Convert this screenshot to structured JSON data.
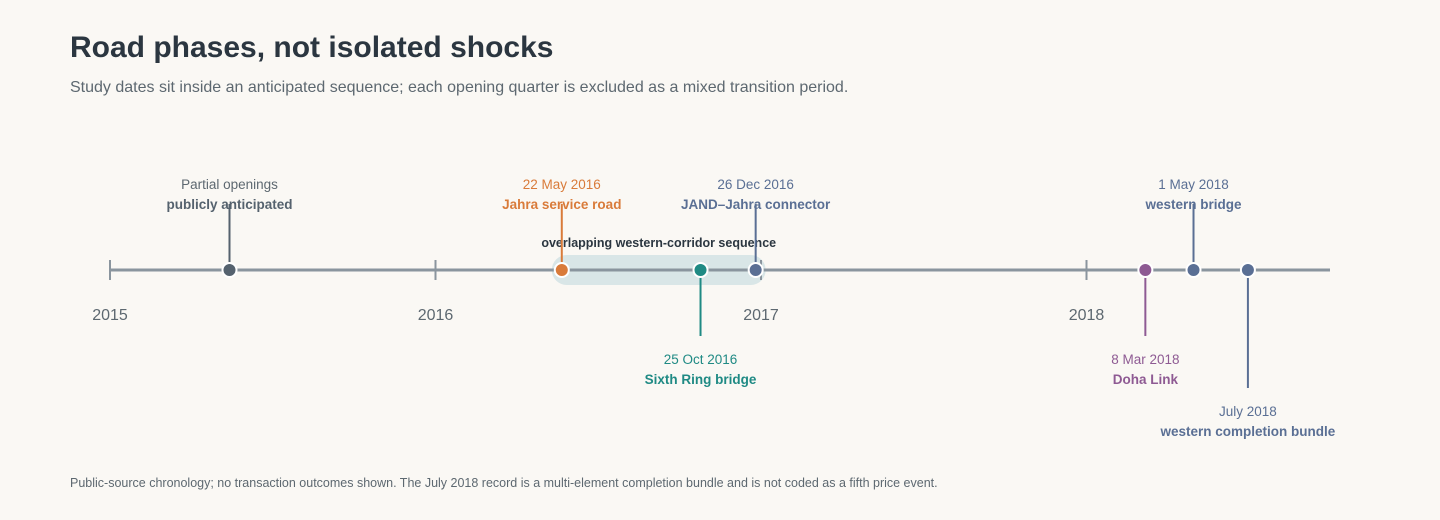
{
  "header": {
    "title": "Road phases, not isolated shocks",
    "subtitle": "Study dates sit inside an anticipated sequence; each opening quarter is excluded as a mixed transition period."
  },
  "footnote": "Public-source chronology; no transaction outcomes shown. The July 2018 record is a multi-element completion bundle and is not coded as a fifth price event.",
  "chart_data": {
    "type": "timeline",
    "x_range": [
      "2015-01-01",
      "2018-09-15"
    ],
    "year_ticks": [
      "2015",
      "2016",
      "2017",
      "2018"
    ],
    "span": {
      "label": "overlapping western-corridor sequence",
      "start": "2016-05-22",
      "end": "2016-12-26"
    },
    "events": [
      {
        "id": "partial",
        "date": "2015-05-15",
        "date_label": "Partial openings",
        "label": "publicly anticipated",
        "color": "#55626e",
        "position": "above"
      },
      {
        "id": "jahra",
        "date": "2016-05-22",
        "date_label": "22 May 2016",
        "label": "Jahra service road",
        "color": "#d97b3a",
        "position": "above"
      },
      {
        "id": "sixth",
        "date": "2016-10-25",
        "date_label": "25 Oct 2016",
        "label": "Sixth Ring bridge",
        "color": "#1f8a84",
        "position": "below"
      },
      {
        "id": "jand",
        "date": "2016-12-26",
        "date_label": "26 Dec 2016",
        "label": "JAND–Jahra connector",
        "color": "#5a6f94",
        "position": "above"
      },
      {
        "id": "doha",
        "date": "2018-03-08",
        "date_label": "8 Mar 2018",
        "label": "Doha Link",
        "color": "#8e5a93",
        "position": "below"
      },
      {
        "id": "western",
        "date": "2018-05-01",
        "date_label": "1 May 2018",
        "label": "western bridge",
        "color": "#5a6f94",
        "position": "above"
      },
      {
        "id": "july",
        "date": "2018-07-01",
        "date_label": "July 2018",
        "label": "western completion bundle",
        "color": "#5a6f94",
        "position": "below-far"
      }
    ]
  }
}
